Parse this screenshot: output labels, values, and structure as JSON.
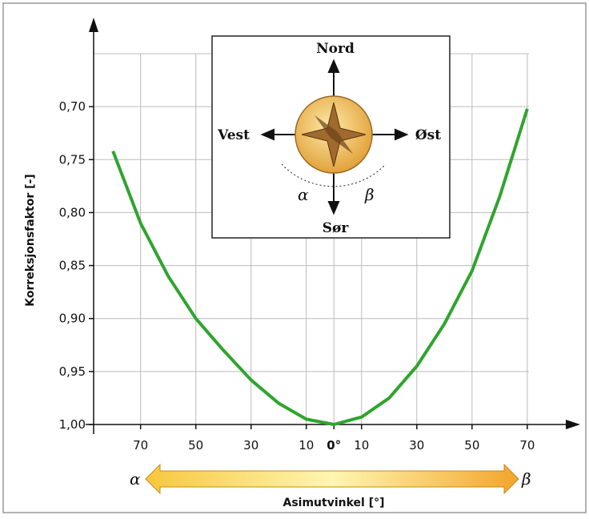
{
  "chart_data": {
    "type": "line",
    "xlabel": "Asimutvinkel [°]",
    "ylabel": "Korreksjonsfaktor [-]",
    "x": [
      -80,
      -70,
      -60,
      -50,
      -40,
      -30,
      -20,
      -10,
      0,
      10,
      20,
      30,
      40,
      50,
      60,
      70
    ],
    "series": [
      {
        "color": "#2ea52e",
        "values": [
          0.742,
          0.81,
          0.86,
          0.9,
          0.93,
          0.958,
          0.98,
          0.995,
          1.0,
          0.993,
          0.975,
          0.945,
          0.905,
          0.855,
          0.785,
          0.702
        ]
      }
    ],
    "xlim": [
      -87,
      88
    ],
    "ylim": [
      1.0,
      0.65
    ],
    "xticks": [
      {
        "value": -70,
        "label": "70"
      },
      {
        "value": -50,
        "label": "50"
      },
      {
        "value": -30,
        "label": "30"
      },
      {
        "value": -10,
        "label": "10"
      },
      {
        "value": 0,
        "label": "0°"
      },
      10,
      30,
      50,
      70
    ],
    "yticks": [
      {
        "value": 1.0,
        "label": "1,00"
      },
      {
        "value": 0.95,
        "label": "0,95"
      },
      {
        "value": 0.9,
        "label": "0,90"
      },
      {
        "value": 0.85,
        "label": "0,85"
      },
      {
        "value": 0.8,
        "label": "0,80"
      },
      {
        "value": 0.75,
        "label": "0,75"
      },
      {
        "value": 0.7,
        "label": "0,70"
      }
    ],
    "grid": true,
    "annotations": {
      "north": "Nord",
      "west": "Vest",
      "east": "Øst",
      "south": "Sør",
      "alpha": "α",
      "beta": "β"
    }
  }
}
